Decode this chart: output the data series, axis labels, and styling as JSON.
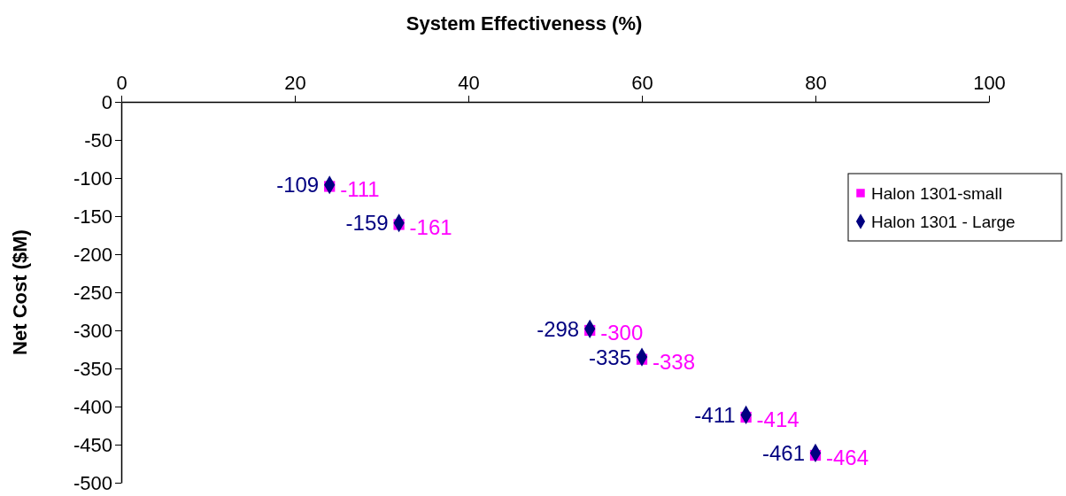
{
  "chart_data": {
    "type": "scatter",
    "xlabel": "System Effectiveness (%)",
    "ylabel": "Net Cost ($M)",
    "x": [
      24,
      32,
      54,
      60,
      72,
      80
    ],
    "series": [
      {
        "name": "Halon 1301-small",
        "color": "#ff00ff",
        "marker": "square",
        "values": [
          -111,
          -161,
          -300,
          -338,
          -414,
          -464
        ]
      },
      {
        "name": "Halon 1301 - Large",
        "color": "#000080",
        "marker": "diamond",
        "values": [
          -109,
          -159,
          -298,
          -335,
          -411,
          -461
        ]
      }
    ],
    "xlim": [
      0,
      100
    ],
    "xticks": [
      0,
      20,
      40,
      60,
      80,
      100
    ],
    "ylim": [
      -500,
      0
    ],
    "yticks": [
      0,
      -50,
      -100,
      -150,
      -200,
      -250,
      -300,
      -350,
      -400,
      -450,
      -500
    ],
    "data_labels": true,
    "legend": "right",
    "grid": false
  }
}
